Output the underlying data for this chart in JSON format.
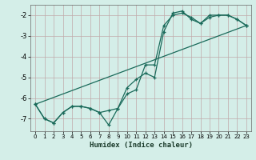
{
  "xlabel": "Humidex (Indice chaleur)",
  "bg_color": "#d4eee8",
  "grid_color": "#c0aaaa",
  "line_color": "#1a6a5a",
  "xlim": [
    -0.5,
    23.5
  ],
  "ylim": [
    -7.6,
    -1.5
  ],
  "yticks": [
    -7,
    -6,
    -5,
    -4,
    -3,
    -2
  ],
  "xticks": [
    0,
    1,
    2,
    3,
    4,
    5,
    6,
    7,
    8,
    9,
    10,
    11,
    12,
    13,
    14,
    15,
    16,
    17,
    18,
    19,
    20,
    21,
    22,
    23
  ],
  "line1_x": [
    0,
    1,
    2,
    3,
    4,
    5,
    6,
    7,
    8,
    9,
    10,
    11,
    12,
    13,
    14,
    15,
    16,
    17,
    18,
    19,
    20,
    21,
    22,
    23
  ],
  "line1_y": [
    -6.3,
    -7.0,
    -7.2,
    -6.7,
    -6.4,
    -6.4,
    -6.5,
    -6.7,
    -7.3,
    -6.5,
    -5.5,
    -5.1,
    -4.8,
    -5.0,
    -2.8,
    -1.9,
    -1.8,
    -2.2,
    -2.4,
    -2.0,
    -2.0,
    -2.0,
    -2.2,
    -2.5
  ],
  "line2_x": [
    0,
    1,
    2,
    3,
    4,
    5,
    6,
    7,
    8,
    9,
    10,
    11,
    12,
    13,
    14,
    15,
    16,
    17,
    18,
    19,
    20,
    21,
    22,
    23
  ],
  "line2_y": [
    -6.3,
    -7.0,
    -7.2,
    -6.7,
    -6.4,
    -6.4,
    -6.5,
    -6.7,
    -6.6,
    -6.5,
    -5.8,
    -5.6,
    -4.4,
    -4.4,
    -2.5,
    -2.0,
    -1.9,
    -2.1,
    -2.4,
    -2.1,
    -2.0,
    -2.0,
    -2.2,
    -2.5
  ],
  "line3_x": [
    0,
    23
  ],
  "line3_y": [
    -6.3,
    -2.5
  ]
}
